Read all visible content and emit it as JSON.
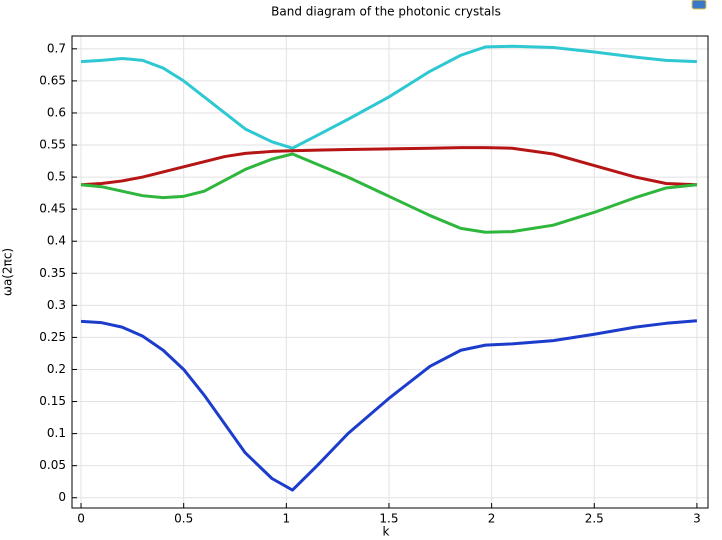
{
  "chart_data": {
    "type": "line",
    "title": "Band diagram of the photonic crystals",
    "xlabel": "k",
    "ylabel": "ωa(2πc)",
    "x": [
      0,
      0.1,
      0.2,
      0.3,
      0.4,
      0.5,
      0.6,
      0.7,
      0.8,
      0.93,
      1.03,
      1.15,
      1.3,
      1.5,
      1.7,
      1.85,
      1.97,
      2.1,
      2.3,
      2.5,
      2.7,
      2.85,
      3.0
    ],
    "series": [
      {
        "color": "#2ec8d2",
        "values": [
          0.68,
          0.682,
          0.685,
          0.682,
          0.67,
          0.65,
          0.625,
          0.6,
          0.575,
          0.555,
          0.545,
          0.565,
          0.59,
          0.625,
          0.665,
          0.69,
          0.703,
          0.704,
          0.702,
          0.695,
          0.687,
          0.682,
          0.68
        ]
      },
      {
        "color": "#b51515",
        "values": [
          0.488,
          0.49,
          0.494,
          0.5,
          0.508,
          0.516,
          0.524,
          0.532,
          0.537,
          0.54,
          0.541,
          0.542,
          0.543,
          0.544,
          0.545,
          0.546,
          0.546,
          0.545,
          0.536,
          0.518,
          0.5,
          0.49,
          0.488
        ]
      },
      {
        "color": "#2fb63c",
        "values": [
          0.488,
          0.485,
          0.478,
          0.471,
          0.468,
          0.47,
          0.478,
          0.495,
          0.512,
          0.528,
          0.536,
          0.52,
          0.5,
          0.47,
          0.44,
          0.42,
          0.414,
          0.415,
          0.425,
          0.445,
          0.468,
          0.483,
          0.488
        ]
      },
      {
        "color": "#1c3ccc",
        "values": [
          0.275,
          0.273,
          0.266,
          0.252,
          0.23,
          0.2,
          0.16,
          0.115,
          0.07,
          0.03,
          0.012,
          0.05,
          0.1,
          0.155,
          0.205,
          0.23,
          0.238,
          0.24,
          0.245,
          0.255,
          0.266,
          0.272,
          0.276
        ]
      }
    ],
    "xlim": [
      -0.044,
      3.054
    ],
    "ylim": [
      -0.016,
      0.72
    ],
    "xticks": [
      0,
      0.5,
      1,
      1.5,
      2,
      2.5,
      3
    ],
    "yticks": [
      0,
      0.05,
      0.1,
      0.15,
      0.2,
      0.25,
      0.3,
      0.35,
      0.4,
      0.45,
      0.5,
      0.55,
      0.6,
      0.65,
      0.7
    ],
    "grid": true
  }
}
